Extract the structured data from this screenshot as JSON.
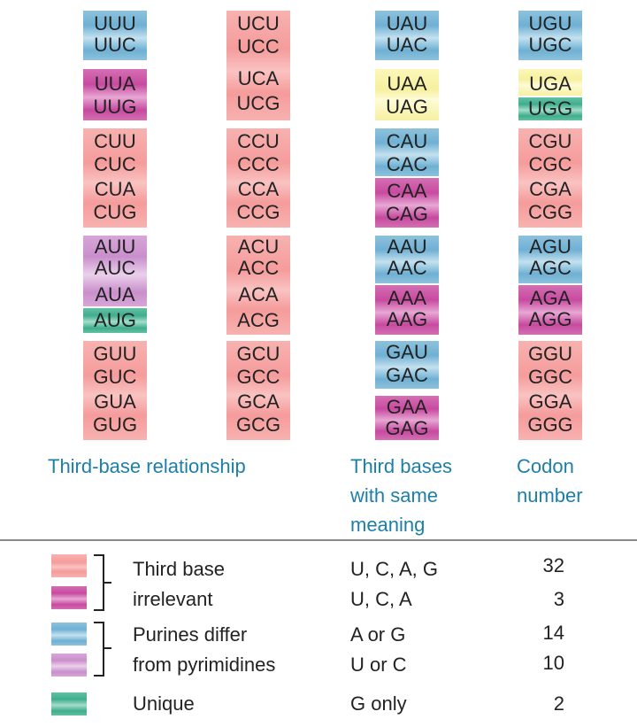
{
  "columns": [
    {
      "blocks": [
        {
          "top": "UUU",
          "bottom": "UUC"
        },
        {
          "top": "UUA",
          "bottom": "UUG"
        },
        {
          "codons": [
            "CUU",
            "CUC",
            "CUA",
            "CUG"
          ]
        },
        {
          "codons": [
            "AUU",
            "AUC",
            "AUA",
            "AUG"
          ]
        },
        {
          "codons": [
            "GUU",
            "GUC",
            "GUA",
            "GUG"
          ]
        }
      ]
    },
    {
      "blocks": [
        {
          "codons": [
            "UCU",
            "UCC",
            "UCA",
            "UCG"
          ]
        },
        {
          "codons": [
            "CCU",
            "CCC",
            "CCA",
            "CCG"
          ]
        },
        {
          "codons": [
            "ACU",
            "ACC",
            "ACA",
            "ACG"
          ]
        },
        {
          "codons": [
            "GCU",
            "GCC",
            "GCA",
            "GCG"
          ]
        }
      ]
    },
    {
      "blocks": [
        {
          "codons": [
            "UAU",
            "UAC"
          ]
        },
        {
          "codons": [
            "UAA",
            "UAG"
          ]
        },
        {
          "codons": [
            "CAU",
            "CAC",
            "CAA",
            "CAG"
          ]
        },
        {
          "codons": [
            "AAU",
            "AAC",
            "AAA",
            "AAG"
          ]
        },
        {
          "codons": [
            "GAU",
            "GAC",
            "GAA",
            "GAG"
          ]
        }
      ]
    },
    {
      "blocks": [
        {
          "codons": [
            "UGU",
            "UGC"
          ]
        },
        {
          "codons": [
            "UGA",
            "UGG"
          ]
        },
        {
          "codons": [
            "CGU",
            "CGC",
            "CGA",
            "CGG"
          ]
        },
        {
          "codons": [
            "AGU",
            "AGC",
            "AGA",
            "AGG"
          ]
        },
        {
          "codons": [
            "GGU",
            "GGC",
            "GGA",
            "GGG"
          ]
        }
      ]
    }
  ],
  "captions": {
    "third_base_relationship": "Third-base relationship",
    "third_bases_same_meaning": [
      "Third bases",
      "with same",
      "meaning"
    ],
    "codon_number": [
      "Codon",
      "number"
    ]
  },
  "legend": [
    {
      "color": "#f59c9c",
      "label": "Third base",
      "bases": "U, C, A, G",
      "count": "32"
    },
    {
      "color": "#c84aa0",
      "label": "irrelevant",
      "bases": "U, C, A",
      "count": "3"
    },
    {
      "color": "#6fb0d4",
      "label": "Purines differ",
      "bases": "A or G",
      "count": "14"
    },
    {
      "color": "#c98fcc",
      "label": "from pyrimidines",
      "bases": "U or C",
      "count": "10"
    },
    {
      "color": "#3fae8c",
      "label": "Unique",
      "bases": "G only",
      "count": "2"
    }
  ]
}
